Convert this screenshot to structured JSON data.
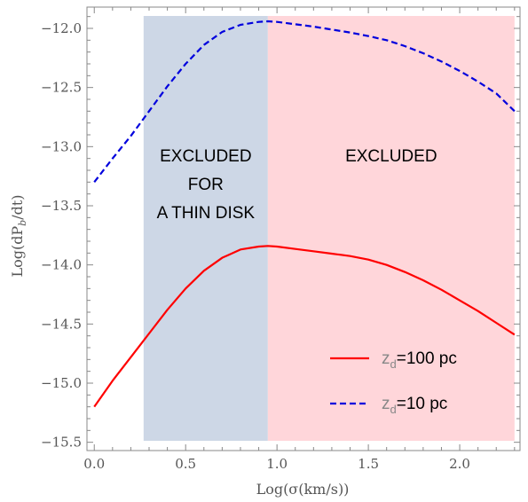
{
  "chart_data": {
    "type": "line",
    "title": "",
    "xlabel": "Log(σ(km/s))",
    "ylabel": "Log(dP_b/dt)",
    "xlim": [
      -0.04,
      2.33
    ],
    "ylim": [
      -15.57,
      -11.82
    ],
    "x_ticks": [
      0.0,
      0.5,
      1.0,
      1.5,
      2.0
    ],
    "x_tick_labels": [
      "0.0",
      "0.5",
      "1.0",
      "1.5",
      "2.0"
    ],
    "y_ticks": [
      -12.0,
      -12.5,
      -13.0,
      -13.5,
      -14.0,
      -14.5,
      -15.0,
      -15.5
    ],
    "y_tick_labels": [
      "−12.0",
      "−12.5",
      "−13.0",
      "−13.5",
      "−14.0",
      "−14.5",
      "−15.0",
      "−15.5"
    ],
    "grid": false,
    "legend_placement": "bottom-right",
    "regions": [
      {
        "x_start": 0.27,
        "x_end": 0.95,
        "color": "#cdd7e6",
        "label_lines": [
          "EXCLUDED",
          "FOR",
          "A THIN DISK"
        ]
      },
      {
        "x_start": 0.95,
        "x_end": 2.3,
        "color": "#ffd6da",
        "label_lines": [
          "EXCLUDED"
        ]
      }
    ],
    "series": [
      {
        "legend_main": "z",
        "legend_sub": "d",
        "legend_value": "=100 pc",
        "color": "#ff0000",
        "style": "solid",
        "x": [
          0.0,
          0.1,
          0.2,
          0.3,
          0.4,
          0.5,
          0.6,
          0.7,
          0.8,
          0.9,
          0.95,
          1.0,
          1.1,
          1.2,
          1.3,
          1.4,
          1.5,
          1.6,
          1.7,
          1.8,
          1.9,
          2.0,
          2.1,
          2.2,
          2.3
        ],
        "y": [
          -15.2,
          -14.98,
          -14.78,
          -14.58,
          -14.38,
          -14.2,
          -14.05,
          -13.94,
          -13.87,
          -13.845,
          -13.84,
          -13.845,
          -13.865,
          -13.885,
          -13.905,
          -13.925,
          -13.955,
          -14.0,
          -14.06,
          -14.13,
          -14.21,
          -14.3,
          -14.39,
          -14.49,
          -14.59
        ]
      },
      {
        "legend_main": "z",
        "legend_sub": "d",
        "legend_value": "=10 pc",
        "color": "#0000dd",
        "style": "dashed",
        "x": [
          0.0,
          0.1,
          0.2,
          0.3,
          0.4,
          0.5,
          0.6,
          0.7,
          0.8,
          0.9,
          0.95,
          1.0,
          1.1,
          1.2,
          1.3,
          1.4,
          1.5,
          1.6,
          1.7,
          1.8,
          1.9,
          2.0,
          2.1,
          2.2,
          2.3
        ],
        "y": [
          -13.3,
          -13.1,
          -12.91,
          -12.7,
          -12.49,
          -12.3,
          -12.14,
          -12.03,
          -11.97,
          -11.945,
          -11.94,
          -11.945,
          -11.965,
          -11.985,
          -12.01,
          -12.035,
          -12.065,
          -12.1,
          -12.15,
          -12.21,
          -12.28,
          -12.36,
          -12.45,
          -12.55,
          -12.7
        ]
      }
    ]
  }
}
